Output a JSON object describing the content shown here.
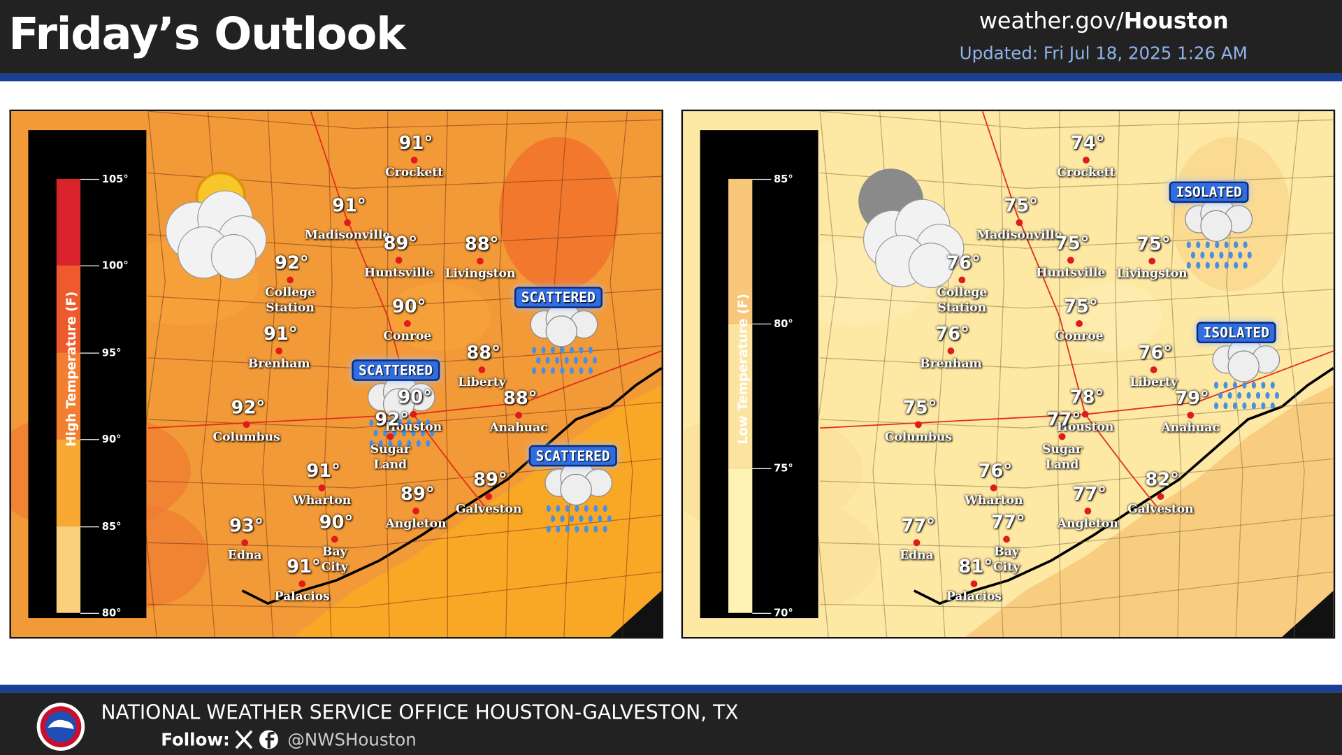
{
  "header": {
    "title": "Friday’s Outlook",
    "site_prefix": "weather.gov/",
    "site_office": "Houston",
    "updated": "Updated: Fri Jul 18, 2025 1:26 AM"
  },
  "maps": [
    {
      "legend_title": "High Temperature (F)",
      "legend_ticks": [
        "105°",
        "100°",
        "95°",
        "90°",
        "85°",
        "80°"
      ],
      "cities": [
        {
          "name": "Crockett",
          "temp": "91°"
        },
        {
          "name": "Madisonville",
          "temp": "91°"
        },
        {
          "name": "Huntsville",
          "temp": "89°"
        },
        {
          "name": "Livingston",
          "temp": "88°"
        },
        {
          "name": "College Station",
          "temp": "92°"
        },
        {
          "name": "Conroe",
          "temp": "90°"
        },
        {
          "name": "Brenham",
          "temp": "91°"
        },
        {
          "name": "Liberty",
          "temp": "88°"
        },
        {
          "name": "Houston",
          "temp": "90°"
        },
        {
          "name": "Anahuac",
          "temp": "88°"
        },
        {
          "name": "Columbus",
          "temp": "92°"
        },
        {
          "name": "Sugar Land",
          "temp": "92°"
        },
        {
          "name": "Wharton",
          "temp": "91°"
        },
        {
          "name": "Angleton",
          "temp": "89°"
        },
        {
          "name": "Galveston",
          "temp": "89°"
        },
        {
          "name": "Edna",
          "temp": "93°"
        },
        {
          "name": "Bay City",
          "temp": "90°"
        },
        {
          "name": "Palacios",
          "temp": "91°"
        }
      ],
      "precip": [
        "SCATTERED",
        "SCATTERED",
        "SCATTERED"
      ]
    },
    {
      "legend_title": "Low Temperature (F)",
      "legend_ticks": [
        "85°",
        "80°",
        "75°",
        "70°"
      ],
      "cities": [
        {
          "name": "Crockett",
          "temp": "74°"
        },
        {
          "name": "Madisonville",
          "temp": "75°"
        },
        {
          "name": "Huntsville",
          "temp": "75°"
        },
        {
          "name": "Livingston",
          "temp": "75°"
        },
        {
          "name": "College Station",
          "temp": "76°"
        },
        {
          "name": "Conroe",
          "temp": "75°"
        },
        {
          "name": "Brenham",
          "temp": "76°"
        },
        {
          "name": "Liberty",
          "temp": "76°"
        },
        {
          "name": "Houston",
          "temp": "78°"
        },
        {
          "name": "Anahuac",
          "temp": "79°"
        },
        {
          "name": "Columbus",
          "temp": "75°"
        },
        {
          "name": "Sugar Land",
          "temp": "77°"
        },
        {
          "name": "Wharton",
          "temp": "76°"
        },
        {
          "name": "Angleton",
          "temp": "77°"
        },
        {
          "name": "Galveston",
          "temp": "82°"
        },
        {
          "name": "Edna",
          "temp": "77°"
        },
        {
          "name": "Bay City",
          "temp": "77°"
        },
        {
          "name": "Palacios",
          "temp": "81°"
        }
      ],
      "precip": [
        "ISOLATED",
        "ISOLATED"
      ]
    }
  ],
  "footer": {
    "office": "NATIONAL WEATHER SERVICE OFFICE HOUSTON-GALVESTON, TX",
    "follow": "Follow:",
    "handle": "@NWSHouston"
  }
}
